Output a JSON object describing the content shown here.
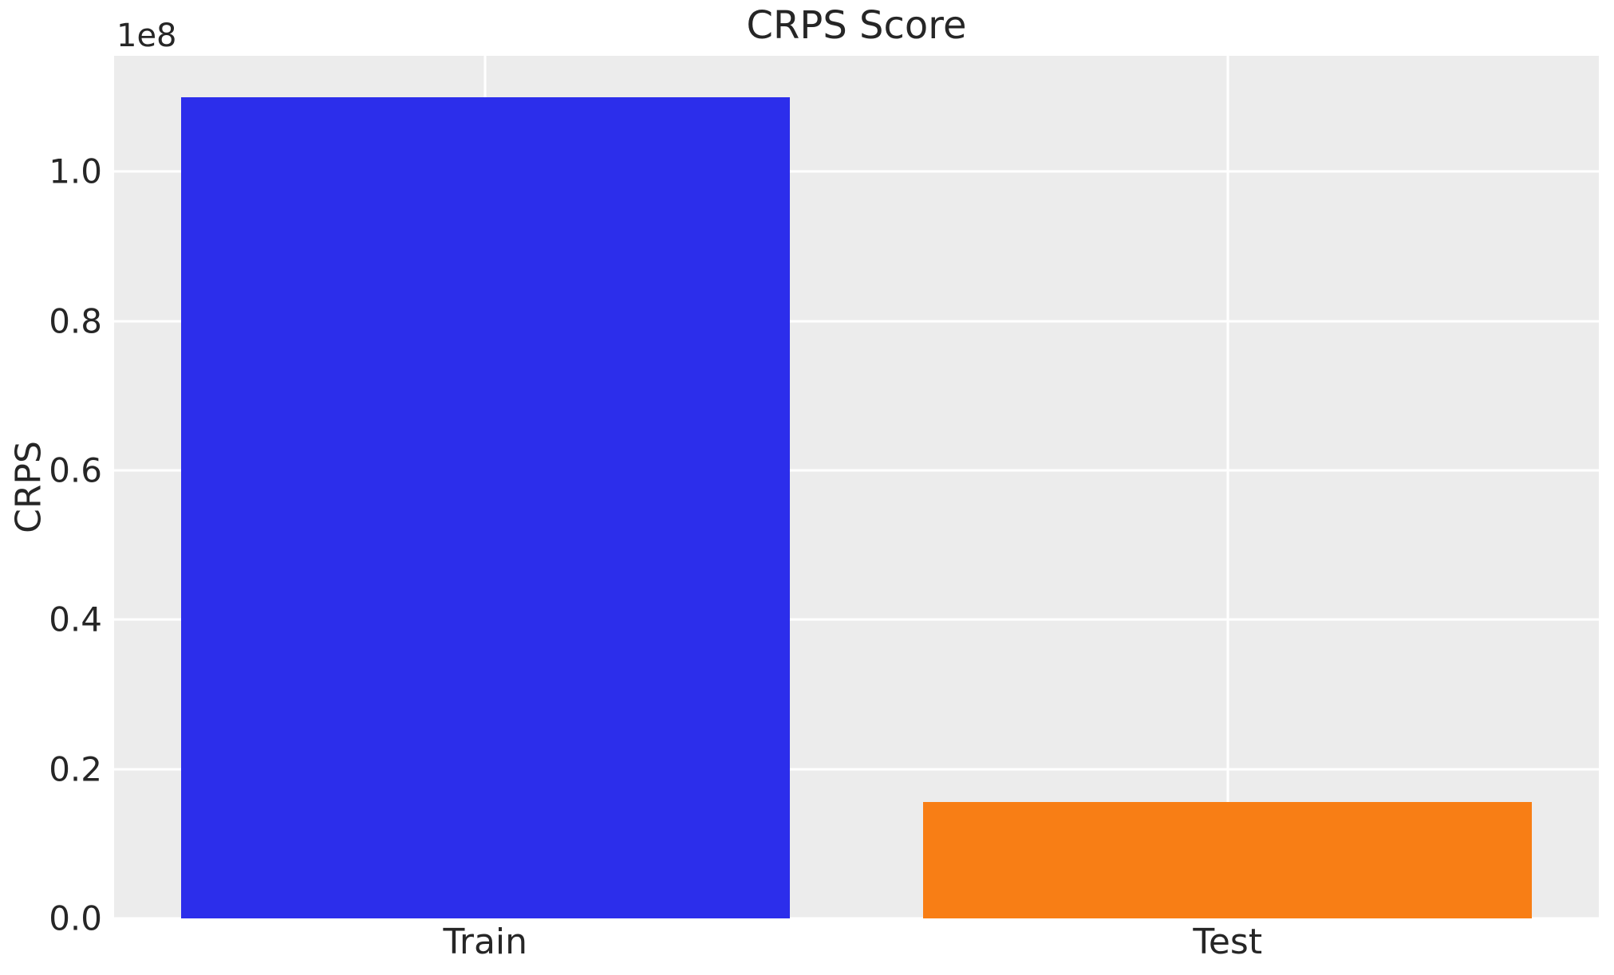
{
  "chart_data": {
    "type": "bar",
    "title": "CRPS Score",
    "xlabel": "",
    "ylabel": "CRPS",
    "categories": [
      "Train",
      "Test"
    ],
    "values": [
      110000000,
      15600000
    ],
    "bar_colors": [
      "#2C2EEB",
      "#F87E15"
    ],
    "ylim": [
      0,
      115500000
    ],
    "yticks": {
      "values": [
        0,
        20000000,
        40000000,
        60000000,
        80000000,
        100000000
      ],
      "labels": [
        "0.0",
        "0.2",
        "0.4",
        "0.6",
        "0.8",
        "1.0"
      ],
      "offset_label": "1e8"
    },
    "grid": true,
    "legend": false,
    "plot_background": "#ECECEC",
    "grid_color": "#FFFFFF",
    "text_color": "#262626"
  }
}
